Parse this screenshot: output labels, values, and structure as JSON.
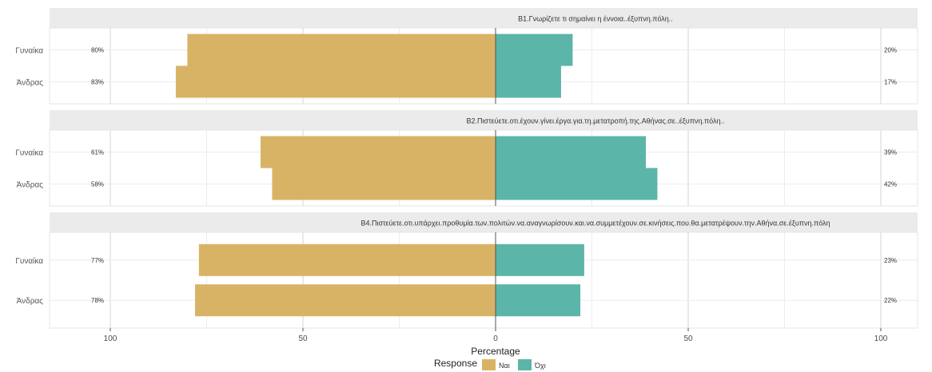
{
  "chart_data": {
    "type": "bar",
    "subtype": "diverging-horizontal-facets",
    "xlabel": "Percentage",
    "xlim": [
      -100,
      100
    ],
    "xticks": [
      -100,
      -50,
      0,
      50,
      100
    ],
    "xtick_labels": [
      "100",
      "50",
      "0",
      "50",
      "100"
    ],
    "grid": true,
    "legend": {
      "title": "Response",
      "placement": "bottom",
      "entries": [
        {
          "label": "Ναι",
          "color": "#D9B365"
        },
        {
          "label": "Όχι",
          "color": "#5BB5A9"
        }
      ]
    },
    "panels": [
      {
        "title": "Β1.Γνωρίζετε τι σημαίνει η έννοια..έξυπνη.πόλη..",
        "rows": [
          {
            "category": "Γυναίκα",
            "nai": 80,
            "ochi": 20,
            "nai_label": "80%",
            "ochi_label": "20%"
          },
          {
            "category": "Άνδρας",
            "nai": 83,
            "ochi": 17,
            "nai_label": "83%",
            "ochi_label": "17%"
          }
        ]
      },
      {
        "title": "Β2.Πιστεύετε.οτι.έχουν.γίνει.έργα.για.τη.μετατροπή.της.Αθήνας.σε..έξυπνη.πόλη..",
        "rows": [
          {
            "category": "Γυναίκα",
            "nai": 61,
            "ochi": 39,
            "nai_label": "61%",
            "ochi_label": "39%"
          },
          {
            "category": "Άνδρας",
            "nai": 58,
            "ochi": 42,
            "nai_label": "58%",
            "ochi_label": "42%"
          }
        ]
      },
      {
        "title": "Β4.Πιστεύετε.οτι.υπάρχει.προθυμία.των.πολιτών.να.αναγνωρίσουν.και.να.συμμετέχουν.σε.κινήσεις.που.θα.μετατρέψουν.την.Αθήνα.σε.έξυπνη.πόλη",
        "rows": [
          {
            "category": "Γυναίκα",
            "nai": 77,
            "ochi": 23,
            "nai_label": "77%",
            "ochi_label": "23%"
          },
          {
            "category": "Άνδρας",
            "nai": 78,
            "ochi": 22,
            "nai_label": "78%",
            "ochi_label": "22%"
          }
        ]
      }
    ]
  }
}
